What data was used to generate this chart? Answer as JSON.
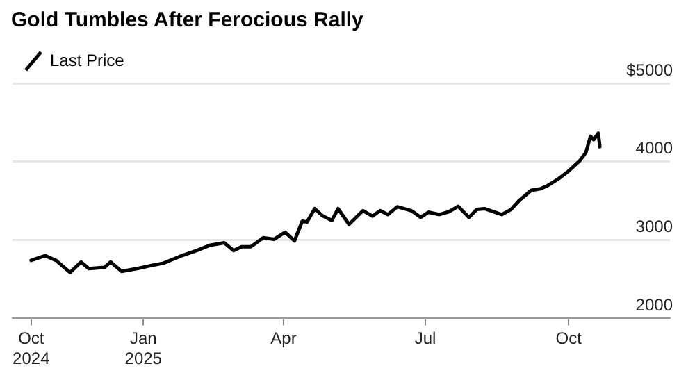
{
  "chart_data": {
    "type": "line",
    "title": "Gold Tumbles After Ferocious Rally",
    "x": [
      "2024-10-21",
      "2024-10-30",
      "2024-11-06",
      "2024-11-15",
      "2024-11-22",
      "2024-11-27",
      "2024-12-07",
      "2024-12-11",
      "2024-12-18",
      "2024-12-28",
      "2025-01-05",
      "2025-01-14",
      "2025-01-25",
      "2025-02-04",
      "2025-02-13",
      "2025-02-22",
      "2025-02-28",
      "2025-03-05",
      "2025-03-11",
      "2025-03-19",
      "2025-03-26",
      "2025-04-02",
      "2025-04-08",
      "2025-04-13",
      "2025-04-16",
      "2025-04-21",
      "2025-04-26",
      "2025-05-02",
      "2025-05-06",
      "2025-05-13",
      "2025-05-22",
      "2025-05-28",
      "2025-06-02",
      "2025-06-07",
      "2025-06-13",
      "2025-06-22",
      "2025-06-28",
      "2025-07-03",
      "2025-07-10",
      "2025-07-16",
      "2025-07-22",
      "2025-07-29",
      "2025-08-03",
      "2025-08-08",
      "2025-08-19",
      "2025-08-25",
      "2025-08-30",
      "2025-09-07",
      "2025-09-13",
      "2025-09-17",
      "2025-09-24",
      "2025-09-30",
      "2025-10-08",
      "2025-10-12",
      "2025-10-15",
      "2025-10-17",
      "2025-10-20",
      "2025-10-21"
    ],
    "series": [
      {
        "name": "Last Price",
        "color": "#000000",
        "values": [
          2740,
          2800,
          2740,
          2585,
          2720,
          2635,
          2650,
          2720,
          2600,
          2635,
          2670,
          2705,
          2795,
          2865,
          2935,
          2965,
          2865,
          2915,
          2915,
          3030,
          3010,
          3100,
          2990,
          3240,
          3230,
          3400,
          3310,
          3250,
          3400,
          3200,
          3375,
          3305,
          3375,
          3325,
          3425,
          3375,
          3290,
          3355,
          3325,
          3360,
          3430,
          3290,
          3390,
          3400,
          3325,
          3390,
          3500,
          3635,
          3655,
          3690,
          3775,
          3865,
          4010,
          4115,
          4325,
          4280,
          4365,
          4190
        ]
      }
    ],
    "xlim": [
      "2024-10-09",
      "2025-12-05"
    ],
    "xticks": [
      {
        "value": "2024-10-21",
        "label": "Oct 2024"
      },
      {
        "value": "2025-01-01",
        "label": "Jan 2025"
      },
      {
        "value": "2025-04-01",
        "label": "Apr"
      },
      {
        "value": "2025-07-01",
        "label": "Jul"
      },
      {
        "value": "2025-10-01",
        "label": "Oct"
      }
    ],
    "ylim": [
      2000,
      5000
    ],
    "yticks": [
      2000,
      3000,
      4000,
      {
        "value": 5000,
        "label": "$5000"
      }
    ],
    "grid": "y",
    "legend": "top left",
    "marker": "none",
    "line_style": "solid"
  }
}
